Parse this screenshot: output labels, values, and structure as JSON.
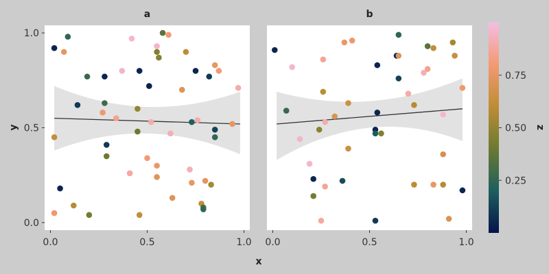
{
  "chart_data": {
    "type": "scatter",
    "xlabel": "x",
    "ylabel": "y",
    "xlim": [
      -0.03,
      1.03
    ],
    "ylim": [
      -0.04,
      1.04
    ],
    "xticks": [
      "0.0",
      "0.5",
      "1.0"
    ],
    "yticks": [
      "0.0",
      "0.5",
      "1.0"
    ],
    "colorbar": {
      "label": "z",
      "range": [
        0,
        1
      ],
      "ticks": [
        "0.25",
        "0.50",
        "0.75"
      ],
      "colors": [
        "#04134a",
        "#1d5f5e",
        "#6b7a31",
        "#bd8d35",
        "#f39a72",
        "#f5bde3"
      ]
    },
    "panels": [
      {
        "title": "a",
        "trend": {
          "x": [
            0.02,
            0.98
          ],
          "y": [
            0.55,
            0.52
          ],
          "band_lower": [
            0.38,
            0.36
          ],
          "band_upper": [
            0.72,
            0.69
          ],
          "band_mid": [
            0.47,
            0.61
          ]
        },
        "points": [
          {
            "x": 0.02,
            "y": 0.92,
            "z": 0.05
          },
          {
            "x": 0.07,
            "y": 0.9,
            "z": 0.75
          },
          {
            "x": 0.09,
            "y": 0.98,
            "z": 0.25
          },
          {
            "x": 0.19,
            "y": 0.77,
            "z": 0.27
          },
          {
            "x": 0.28,
            "y": 0.77,
            "z": 0.05
          },
          {
            "x": 0.14,
            "y": 0.62,
            "z": 0.1
          },
          {
            "x": 0.28,
            "y": 0.63,
            "z": 0.28
          },
          {
            "x": 0.27,
            "y": 0.58,
            "z": 0.78
          },
          {
            "x": 0.34,
            "y": 0.55,
            "z": 0.85
          },
          {
            "x": 0.42,
            "y": 0.97,
            "z": 0.96
          },
          {
            "x": 0.37,
            "y": 0.8,
            "z": 0.95
          },
          {
            "x": 0.46,
            "y": 0.8,
            "z": 0.05
          },
          {
            "x": 0.51,
            "y": 0.72,
            "z": 0.04
          },
          {
            "x": 0.55,
            "y": 0.9,
            "z": 0.45
          },
          {
            "x": 0.56,
            "y": 0.87,
            "z": 0.47
          },
          {
            "x": 0.58,
            "y": 1.0,
            "z": 0.35
          },
          {
            "x": 0.61,
            "y": 0.99,
            "z": 0.8
          },
          {
            "x": 0.55,
            "y": 0.93,
            "z": 0.95
          },
          {
            "x": 0.7,
            "y": 0.9,
            "z": 0.6
          },
          {
            "x": 0.75,
            "y": 0.8,
            "z": 0.05
          },
          {
            "x": 0.82,
            "y": 0.77,
            "z": 0.1
          },
          {
            "x": 0.85,
            "y": 0.83,
            "z": 0.75
          },
          {
            "x": 0.87,
            "y": 0.8,
            "z": 0.8
          },
          {
            "x": 0.97,
            "y": 0.71,
            "z": 0.9
          },
          {
            "x": 0.68,
            "y": 0.7,
            "z": 0.72
          },
          {
            "x": 0.45,
            "y": 0.6,
            "z": 0.5
          },
          {
            "x": 0.02,
            "y": 0.45,
            "z": 0.62
          },
          {
            "x": 0.45,
            "y": 0.48,
            "z": 0.4
          },
          {
            "x": 0.52,
            "y": 0.53,
            "z": 0.9
          },
          {
            "x": 0.62,
            "y": 0.47,
            "z": 0.92
          },
          {
            "x": 0.73,
            "y": 0.53,
            "z": 0.2
          },
          {
            "x": 0.76,
            "y": 0.54,
            "z": 0.9
          },
          {
            "x": 0.85,
            "y": 0.49,
            "z": 0.12
          },
          {
            "x": 0.85,
            "y": 0.45,
            "z": 0.25
          },
          {
            "x": 0.94,
            "y": 0.52,
            "z": 0.75
          },
          {
            "x": 0.29,
            "y": 0.41,
            "z": 0.1
          },
          {
            "x": 0.29,
            "y": 0.35,
            "z": 0.4
          },
          {
            "x": 0.5,
            "y": 0.34,
            "z": 0.8
          },
          {
            "x": 0.55,
            "y": 0.3,
            "z": 0.77
          },
          {
            "x": 0.41,
            "y": 0.26,
            "z": 0.88
          },
          {
            "x": 0.72,
            "y": 0.28,
            "z": 0.92
          },
          {
            "x": 0.55,
            "y": 0.24,
            "z": 0.72
          },
          {
            "x": 0.73,
            "y": 0.21,
            "z": 0.75
          },
          {
            "x": 0.8,
            "y": 0.22,
            "z": 0.74
          },
          {
            "x": 0.83,
            "y": 0.2,
            "z": 0.55
          },
          {
            "x": 0.05,
            "y": 0.18,
            "z": 0.05
          },
          {
            "x": 0.63,
            "y": 0.13,
            "z": 0.72
          },
          {
            "x": 0.12,
            "y": 0.09,
            "z": 0.58
          },
          {
            "x": 0.78,
            "y": 0.1,
            "z": 0.62
          },
          {
            "x": 0.79,
            "y": 0.08,
            "z": 0.3
          },
          {
            "x": 0.79,
            "y": 0.07,
            "z": 0.25
          },
          {
            "x": 0.02,
            "y": 0.05,
            "z": 0.78
          },
          {
            "x": 0.2,
            "y": 0.04,
            "z": 0.42
          },
          {
            "x": 0.46,
            "y": 0.04,
            "z": 0.62
          }
        ]
      },
      {
        "title": "b",
        "trend": {
          "x": [
            0.02,
            0.98
          ],
          "y": [
            0.52,
            0.6
          ],
          "band_lower": [
            0.33,
            0.43
          ],
          "band_upper": [
            0.69,
            0.76
          ],
          "band_mid": [
            0.5,
            0.64
          ]
        },
        "points": [
          {
            "x": 0.01,
            "y": 0.91,
            "z": 0.05
          },
          {
            "x": 0.1,
            "y": 0.82,
            "z": 0.96
          },
          {
            "x": 0.07,
            "y": 0.59,
            "z": 0.27
          },
          {
            "x": 0.26,
            "y": 0.86,
            "z": 0.86
          },
          {
            "x": 0.37,
            "y": 0.95,
            "z": 0.77
          },
          {
            "x": 0.41,
            "y": 0.96,
            "z": 0.78
          },
          {
            "x": 0.26,
            "y": 0.69,
            "z": 0.6
          },
          {
            "x": 0.39,
            "y": 0.63,
            "z": 0.65
          },
          {
            "x": 0.32,
            "y": 0.56,
            "z": 0.7
          },
          {
            "x": 0.27,
            "y": 0.53,
            "z": 0.9
          },
          {
            "x": 0.54,
            "y": 0.83,
            "z": 0.05
          },
          {
            "x": 0.65,
            "y": 0.99,
            "z": 0.25
          },
          {
            "x": 0.64,
            "y": 0.88,
            "z": 0.05
          },
          {
            "x": 0.65,
            "y": 0.88,
            "z": 0.72
          },
          {
            "x": 0.65,
            "y": 0.76,
            "z": 0.12
          },
          {
            "x": 0.8,
            "y": 0.93,
            "z": 0.35
          },
          {
            "x": 0.83,
            "y": 0.92,
            "z": 0.62
          },
          {
            "x": 0.93,
            "y": 0.95,
            "z": 0.55
          },
          {
            "x": 0.94,
            "y": 0.88,
            "z": 0.63
          },
          {
            "x": 0.78,
            "y": 0.79,
            "z": 0.92
          },
          {
            "x": 0.8,
            "y": 0.81,
            "z": 0.85
          },
          {
            "x": 0.7,
            "y": 0.68,
            "z": 0.9
          },
          {
            "x": 0.73,
            "y": 0.62,
            "z": 0.58
          },
          {
            "x": 0.98,
            "y": 0.71,
            "z": 0.78
          },
          {
            "x": 0.88,
            "y": 0.57,
            "z": 0.96
          },
          {
            "x": 0.54,
            "y": 0.58,
            "z": 0.05
          },
          {
            "x": 0.24,
            "y": 0.49,
            "z": 0.47
          },
          {
            "x": 0.53,
            "y": 0.49,
            "z": 0.05
          },
          {
            "x": 0.53,
            "y": 0.47,
            "z": 0.2
          },
          {
            "x": 0.56,
            "y": 0.47,
            "z": 0.45
          },
          {
            "x": 0.14,
            "y": 0.44,
            "z": 0.95
          },
          {
            "x": 0.39,
            "y": 0.39,
            "z": 0.65
          },
          {
            "x": 0.88,
            "y": 0.36,
            "z": 0.68
          },
          {
            "x": 0.19,
            "y": 0.31,
            "z": 0.96
          },
          {
            "x": 0.21,
            "y": 0.23,
            "z": 0.05
          },
          {
            "x": 0.36,
            "y": 0.22,
            "z": 0.15
          },
          {
            "x": 0.27,
            "y": 0.19,
            "z": 0.86
          },
          {
            "x": 0.73,
            "y": 0.2,
            "z": 0.6
          },
          {
            "x": 0.83,
            "y": 0.2,
            "z": 0.75
          },
          {
            "x": 0.88,
            "y": 0.2,
            "z": 0.58
          },
          {
            "x": 0.98,
            "y": 0.17,
            "z": 0.05
          },
          {
            "x": 0.21,
            "y": 0.14,
            "z": 0.42
          },
          {
            "x": 0.25,
            "y": 0.01,
            "z": 0.88
          },
          {
            "x": 0.53,
            "y": 0.01,
            "z": 0.1
          },
          {
            "x": 0.91,
            "y": 0.02,
            "z": 0.7
          }
        ]
      }
    ]
  }
}
